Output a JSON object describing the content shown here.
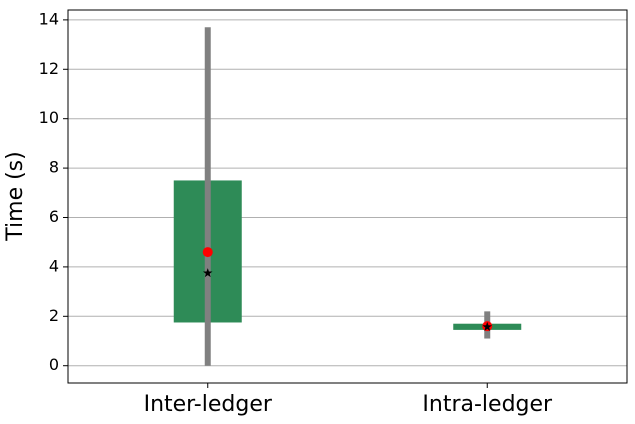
{
  "chart_data": {
    "type": "box",
    "ylabel": "Time (s)",
    "categories": [
      "Inter-ledger",
      "Intra-ledger"
    ],
    "q1": [
      1.75,
      1.45
    ],
    "q3": [
      7.5,
      1.7
    ],
    "min": [
      0,
      1.1
    ],
    "max": [
      13.7,
      2.2
    ],
    "mean": [
      4.6,
      1.6
    ],
    "median": [
      3.75,
      1.57
    ],
    "box_color": "#2e8b57",
    "whisker_color": "#808080",
    "mean_color": "#ff0000",
    "median_color": "#000000",
    "ylim": [
      -0.7,
      14.4
    ],
    "yticks": [
      0,
      2,
      4,
      6,
      8,
      10,
      12,
      14
    ],
    "grid": true
  }
}
